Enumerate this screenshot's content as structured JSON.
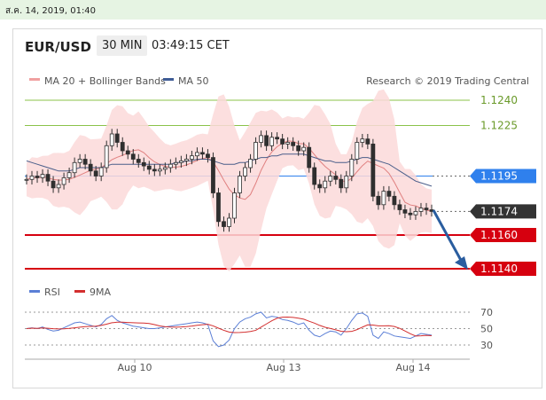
{
  "top_timestamp": "ส.ค. 14, 2019, 01:40",
  "header": {
    "pair": "EUR/USD",
    "timeframe": "30 MIN",
    "time": "03:49:15 CET"
  },
  "legend": {
    "ma20_label": "MA 20 + Bollinger Bands",
    "ma50_label": "MA 50",
    "credit": "Research © 2019 Trading Central",
    "rsi_label": "RSI",
    "ma9_label": "9MA"
  },
  "colors": {
    "candle": "#2f2f2f",
    "band_fill": "#fbd9d9",
    "ma20": "#e08080",
    "ma50": "#4a5e8a",
    "green_level": "#8bc34a",
    "blue_level": "#2f80ed",
    "red_level": "#d6000f",
    "arrow": "#2a5d9f",
    "rsi": "#5b7fd6",
    "ma9": "#d32f2f",
    "last_price": "#333333"
  },
  "chart_data": {
    "type": "candlestick",
    "x_ticks": [
      "Aug 10",
      "Aug 13",
      "Aug 14"
    ],
    "ylim": [
      1.1135,
      1.125
    ],
    "levels": [
      {
        "value": 1.124,
        "label": "1.1240",
        "kind": "resistance-green"
      },
      {
        "value": 1.1225,
        "label": "1.1225",
        "kind": "resistance-green"
      },
      {
        "value": 1.1195,
        "label": "1.1195",
        "kind": "pivot-blue"
      },
      {
        "value": 1.1174,
        "label": "1.1174",
        "kind": "last-price"
      },
      {
        "value": 1.116,
        "label": "1.1160",
        "kind": "support-red"
      },
      {
        "value": 1.114,
        "label": "1.1140",
        "kind": "support-red"
      }
    ],
    "closes": [
      1.1193,
      1.1195,
      1.1194,
      1.1196,
      1.1192,
      1.1188,
      1.119,
      1.1194,
      1.1197,
      1.1203,
      1.1205,
      1.1202,
      1.1198,
      1.1195,
      1.12,
      1.1213,
      1.122,
      1.1215,
      1.121,
      1.1208,
      1.1205,
      1.1203,
      1.1201,
      1.1199,
      1.1198,
      1.1199,
      1.12,
      1.1202,
      1.1203,
      1.1204,
      1.1205,
      1.1207,
      1.1209,
      1.1208,
      1.1206,
      1.1185,
      1.1168,
      1.1165,
      1.117,
      1.1185,
      1.1195,
      1.12,
      1.1205,
      1.1215,
      1.1219,
      1.1213,
      1.1218,
      1.1217,
      1.1214,
      1.1215,
      1.1213,
      1.121,
      1.1212,
      1.12,
      1.119,
      1.1188,
      1.1192,
      1.1195,
      1.1193,
      1.1188,
      1.1195,
      1.1205,
      1.1215,
      1.1217,
      1.1214,
      1.1183,
      1.1178,
      1.1186,
      1.1183,
      1.1178,
      1.1175,
      1.1173,
      1.1172,
      1.1174,
      1.1176,
      1.1175,
      1.1174
    ],
    "ma50": [
      1.1204,
      1.1203,
      1.1202,
      1.1201,
      1.12,
      1.1199,
      1.1198,
      1.1198,
      1.1198,
      1.1199,
      1.12,
      1.12,
      1.12,
      1.12,
      1.12,
      1.1201,
      1.1202,
      1.1202,
      1.1202,
      1.1202,
      1.1202,
      1.1202,
      1.1202,
      1.1202,
      1.1202,
      1.1202,
      1.1202,
      1.1202,
      1.1203,
      1.1203,
      1.1204,
      1.1204,
      1.1205,
      1.1205,
      1.1205,
      1.1204,
      1.1203,
      1.1202,
      1.1202,
      1.1202,
      1.1203,
      1.1203,
      1.1204,
      1.1205,
      1.1206,
      1.1206,
      1.1207,
      1.1207,
      1.1208,
      1.1208,
      1.1208,
      1.1208,
      1.1208,
      1.1207,
      1.1206,
      1.1205,
      1.1204,
      1.1204,
      1.1203,
      1.1203,
      1.1203,
      1.1204,
      1.1205,
      1.1206,
      1.1206,
      1.1205,
      1.1204,
      1.1203,
      1.1202,
      1.12,
      1.1198,
      1.1196,
      1.1194,
      1.1192,
      1.1191,
      1.119,
      1.1189
    ],
    "rsi": [
      50,
      51,
      50,
      52,
      49,
      47,
      48,
      51,
      54,
      57,
      58,
      56,
      54,
      52,
      55,
      62,
      66,
      60,
      57,
      55,
      53,
      52,
      51,
      50,
      50,
      51,
      52,
      53,
      54,
      55,
      56,
      57,
      58,
      57,
      55,
      35,
      28,
      30,
      36,
      50,
      58,
      62,
      64,
      68,
      70,
      63,
      65,
      64,
      61,
      60,
      58,
      55,
      57,
      48,
      42,
      40,
      44,
      47,
      46,
      42,
      50,
      60,
      68,
      69,
      65,
      42,
      38,
      46,
      44,
      41,
      40,
      39,
      38,
      41,
      44,
      43,
      42
    ],
    "rsi_ticks": [
      70,
      50,
      30
    ]
  }
}
